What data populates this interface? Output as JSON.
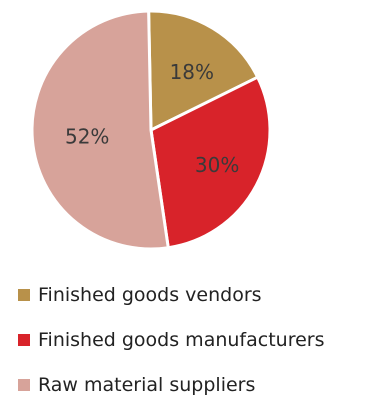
{
  "chart_data": {
    "type": "pie",
    "series": [
      {
        "name": "Finished goods vendors",
        "label": "18%",
        "value": 18,
        "color": "#B8914A"
      },
      {
        "name": "Finished goods manufacturers",
        "label": "30%",
        "value": 30,
        "color": "#D8232A"
      },
      {
        "name": "Raw material suppliers",
        "label": "52%",
        "value": 52,
        "color": "#D7A39A"
      }
    ],
    "legend_position": "bottom-left"
  }
}
